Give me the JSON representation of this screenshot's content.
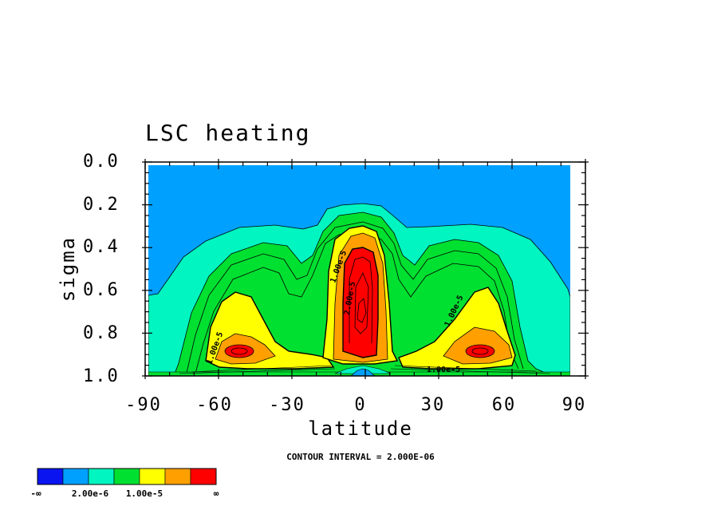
{
  "chart_data": {
    "type": "contour",
    "title": "LSC heating",
    "xlabel": "latitude",
    "ylabel": "sigma",
    "xlim": [
      -90,
      90
    ],
    "ylim": [
      1.0,
      0.0
    ],
    "x_ticks": [
      "-90",
      "-60",
      "-30",
      "0",
      "30",
      "60",
      "90"
    ],
    "y_ticks": [
      "0.0",
      "0.2",
      "0.4",
      "0.6",
      "0.8",
      "1.0"
    ],
    "contour_interval_text": "CONTOUR INTERVAL = 2.000E-06",
    "contour_labels": [
      "1.00e-5",
      "1.00e-5",
      "2.00e-5",
      "1.00e-5",
      "1.00e-5"
    ],
    "colorbar": {
      "labels": [
        "-∞",
        "2.00e-6",
        "1.00e-5",
        "∞"
      ],
      "colors": [
        "#0a14f0",
        "#00a0ff",
        "#00f5c0",
        "#00e030",
        "#ffff00",
        "#ffa000",
        "#ff0000"
      ]
    },
    "levels": {
      "blue": "#00a0ff",
      "teal": "#00f5c0",
      "green": "#00e030",
      "yellow": "#ffff00",
      "orange": "#ffa000",
      "red": "#ff0000"
    }
  }
}
